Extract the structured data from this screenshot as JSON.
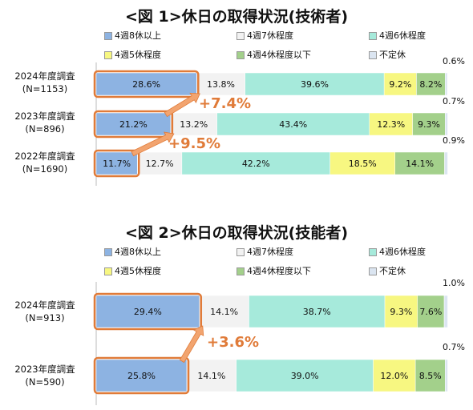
{
  "chart_data": [
    {
      "type": "bar",
      "title": "<図 1>休日の取得状況(技術者)",
      "categories": [
        "2024年度調査",
        "2023年度調査",
        "2022年度調査"
      ],
      "category_sub": [
        "(N=1153)",
        "(N=896)",
        "(N=1690)"
      ],
      "series": [
        {
          "name": "4週8休以上",
          "values": [
            28.6,
            21.2,
            11.7
          ],
          "labels": [
            "28.6%",
            "21.2%",
            "11.7%"
          ],
          "color": "#8db3e2"
        },
        {
          "name": "4週7休程度",
          "values": [
            13.8,
            13.2,
            12.7
          ],
          "labels": [
            "13.8%",
            "13.2%",
            "12.7%"
          ],
          "color": "#f2f2f2"
        },
        {
          "name": "4週6休程度",
          "values": [
            39.6,
            43.4,
            42.2
          ],
          "labels": [
            "39.6%",
            "43.4%",
            "42.2%"
          ],
          "color": "#a6eadb"
        },
        {
          "name": "4週5休程度",
          "values": [
            9.2,
            12.3,
            18.5
          ],
          "labels": [
            "9.2%",
            "12.3%",
            "18.5%"
          ],
          "color": "#f7f781"
        },
        {
          "name": "4週4休程度以下",
          "values": [
            8.2,
            9.3,
            14.1
          ],
          "labels": [
            "8.2%",
            "9.3%",
            "14.1%"
          ],
          "color": "#a3d08b"
        },
        {
          "name": "不定休",
          "values": [
            0.6,
            0.7,
            0.9
          ],
          "labels": [
            "0.6%",
            "0.7%",
            "0.9%"
          ],
          "color": "#dbe5f1"
        }
      ],
      "annotations": [
        "+7.4%",
        "+9.5%"
      ],
      "stacked": true,
      "orientation": "horizontal",
      "xlim": [
        0,
        100
      ]
    },
    {
      "type": "bar",
      "title": "<図 2>休日の取得状況(技能者)",
      "categories": [
        "2024年度調査",
        "2023年度調査"
      ],
      "category_sub": [
        "(N=913)",
        "(N=590)"
      ],
      "series": [
        {
          "name": "4週8休以上",
          "values": [
            29.4,
            25.8
          ],
          "labels": [
            "29.4%",
            "25.8%"
          ],
          "color": "#8db3e2"
        },
        {
          "name": "4週7休程度",
          "values": [
            14.1,
            14.1
          ],
          "labels": [
            "14.1%",
            "14.1%"
          ],
          "color": "#f2f2f2"
        },
        {
          "name": "4週6休程度",
          "values": [
            38.7,
            39.0
          ],
          "labels": [
            "38.7%",
            "39.0%"
          ],
          "color": "#a6eadb"
        },
        {
          "name": "4週5休程度",
          "values": [
            9.3,
            12.0
          ],
          "labels": [
            "9.3%",
            "12.0%"
          ],
          "color": "#f7f781"
        },
        {
          "name": "4週4休程度以下",
          "values": [
            7.6,
            8.5
          ],
          "labels": [
            "7.6%",
            "8.5%"
          ],
          "color": "#a3d08b"
        },
        {
          "name": "不定休",
          "values": [
            1.0,
            0.7
          ],
          "labels": [
            "1.0%",
            "0.7%"
          ],
          "color": "#dbe5f1"
        }
      ],
      "annotations": [
        "+3.6%"
      ],
      "stacked": true,
      "orientation": "horizontal",
      "xlim": [
        0,
        100
      ]
    }
  ],
  "colors": {
    "highlight_border": "#e07b39",
    "arrow": "#f2a46f",
    "diff_text": "#e07b39"
  }
}
